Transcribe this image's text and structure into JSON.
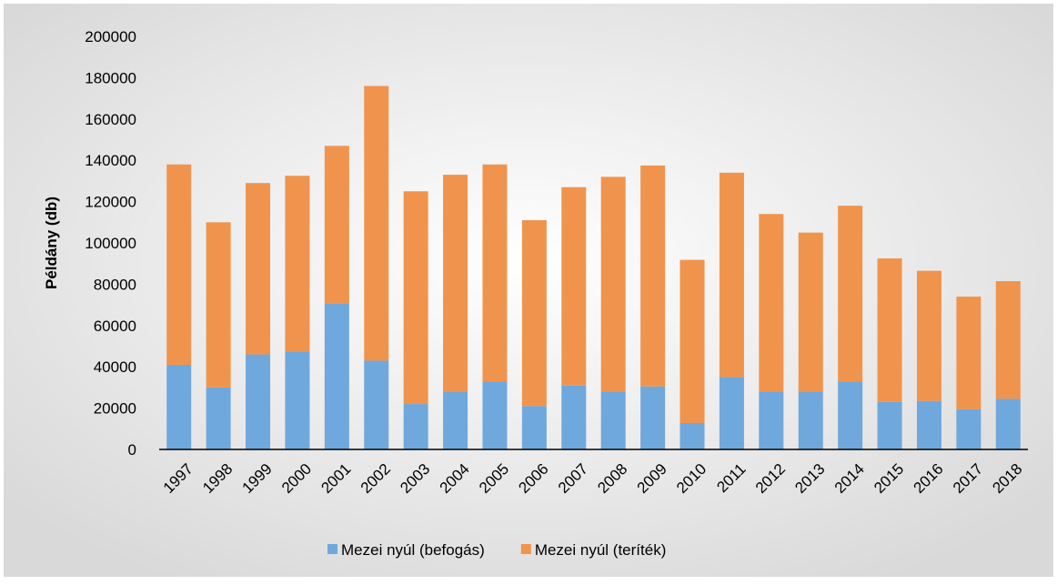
{
  "chart_data": {
    "type": "stacked_bar",
    "ylabel": "Példány  (db)",
    "categories": [
      "1997",
      "1998",
      "1999",
      "2000",
      "2001",
      "2002",
      "2003",
      "2004",
      "2005",
      "2006",
      "2007",
      "2008",
      "2009",
      "2010",
      "2011",
      "2012",
      "2013",
      "2014",
      "2015",
      "2016",
      "2017",
      "2018"
    ],
    "series": [
      {
        "name": "Mezei nyúl (befogás)",
        "color": "#6fa8dc",
        "values": [
          41000,
          30000,
          46000,
          47500,
          70500,
          43000,
          22000,
          28000,
          33000,
          21000,
          31000,
          28000,
          30500,
          12800,
          35000,
          28000,
          28000,
          33000,
          23000,
          23500,
          19500,
          24500
        ]
      },
      {
        "name": "Mezei nyúl (teríték)",
        "color": "#f0944d",
        "values": [
          97000,
          80000,
          83000,
          85000,
          76500,
          133000,
          103000,
          105000,
          105000,
          90000,
          96000,
          104000,
          107000,
          79000,
          99000,
          86000,
          77000,
          85000,
          69500,
          63000,
          54500,
          57000
        ]
      }
    ],
    "ylim": [
      0,
      200000
    ],
    "yticks": [
      0,
      20000,
      40000,
      60000,
      80000,
      100000,
      120000,
      140000,
      160000,
      180000,
      200000
    ],
    "legend": "bottom"
  }
}
